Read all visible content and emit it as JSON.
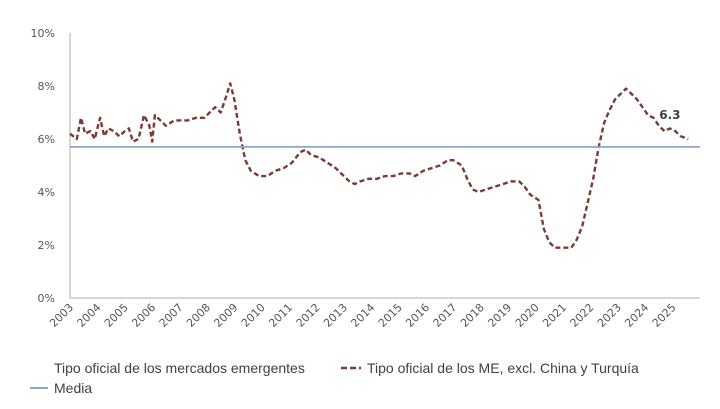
{
  "chart_data": {
    "type": "line",
    "title": "",
    "xlabel": "",
    "ylabel": "",
    "ylim": [
      0,
      10
    ],
    "xlim": [
      2003,
      2026
    ],
    "yticks": [
      "0%",
      "2%",
      "4%",
      "6%",
      "8%",
      "10%"
    ],
    "ytick_values": [
      0,
      2,
      4,
      6,
      8,
      10
    ],
    "xticks": [
      "2003",
      "2004",
      "2005",
      "2006",
      "2007",
      "2008",
      "2009",
      "2010",
      "2011",
      "2012",
      "2013",
      "2014",
      "2015",
      "2016",
      "2017",
      "2018",
      "2019",
      "2020",
      "2021",
      "2022",
      "2023",
      "2024",
      "2025"
    ],
    "grid": false,
    "legend_position": "bottom",
    "colors": {
      "series": "#7b3a33",
      "media": "#8fa7c4",
      "axis": "#c8c8c8"
    },
    "series": [
      {
        "name": "Tipo oficial de los mercados emergentes",
        "style": "none",
        "x": [],
        "values": []
      },
      {
        "name": "Tipo oficial de los ME, excl. China y Turquía",
        "style": "dashed",
        "x": [
          2003.0,
          2003.25,
          2003.4,
          2003.55,
          2003.75,
          2003.9,
          2004.1,
          2004.25,
          2004.4,
          2004.6,
          2004.8,
          2005.0,
          2005.15,
          2005.3,
          2005.5,
          2005.7,
          2005.9,
          2006.0,
          2006.1,
          2006.3,
          2006.5,
          2006.8,
          2007.0,
          2007.3,
          2007.6,
          2007.9,
          2008.1,
          2008.3,
          2008.5,
          2008.7,
          2008.85,
          2009.0,
          2009.2,
          2009.4,
          2009.6,
          2009.9,
          2010.2,
          2010.5,
          2010.8,
          2011.1,
          2011.4,
          2011.6,
          2011.8,
          2012.1,
          2012.4,
          2012.7,
          2013.0,
          2013.2,
          2013.4,
          2013.6,
          2013.9,
          2014.2,
          2014.5,
          2014.8,
          2015.1,
          2015.4,
          2015.6,
          2015.9,
          2016.2,
          2016.5,
          2016.8,
          2017.0,
          2017.3,
          2017.5,
          2017.7,
          2017.9,
          2018.2,
          2018.5,
          2018.8,
          2019.1,
          2019.4,
          2019.6,
          2019.8,
          2020.1,
          2020.3,
          2020.5,
          2020.7,
          2021.0,
          2021.3,
          2021.5,
          2021.7,
          2021.9,
          2022.1,
          2022.3,
          2022.5,
          2022.7,
          2022.9,
          2023.1,
          2023.3,
          2023.5,
          2023.7,
          2023.9,
          2024.1,
          2024.3,
          2024.5,
          2024.7,
          2024.9,
          2025.1,
          2025.3,
          2025.57
        ],
        "values": [
          6.2,
          6.0,
          6.8,
          6.2,
          6.3,
          6.0,
          6.8,
          6.1,
          6.4,
          6.3,
          6.1,
          6.3,
          6.4,
          5.9,
          6.0,
          6.9,
          6.5,
          5.9,
          6.9,
          6.7,
          6.5,
          6.7,
          6.7,
          6.7,
          6.8,
          6.8,
          7.0,
          7.2,
          7.0,
          7.6,
          8.1,
          7.5,
          6.2,
          5.2,
          4.8,
          4.6,
          4.6,
          4.8,
          4.9,
          5.1,
          5.5,
          5.6,
          5.4,
          5.3,
          5.1,
          4.9,
          4.6,
          4.4,
          4.3,
          4.4,
          4.5,
          4.5,
          4.6,
          4.6,
          4.7,
          4.7,
          4.6,
          4.8,
          4.9,
          5.0,
          5.2,
          5.2,
          5.0,
          4.5,
          4.1,
          4.0,
          4.1,
          4.2,
          4.3,
          4.4,
          4.4,
          4.2,
          3.9,
          3.7,
          2.6,
          2.1,
          1.9,
          1.9,
          1.9,
          2.2,
          2.7,
          3.6,
          4.5,
          5.7,
          6.6,
          7.1,
          7.5,
          7.7,
          7.9,
          7.7,
          7.5,
          7.2,
          6.9,
          6.8,
          6.5,
          6.3,
          6.4,
          6.3,
          6.1,
          6.0
        ]
      },
      {
        "name": "Media",
        "style": "solid",
        "x": [
          2003,
          2026
        ],
        "values": [
          5.7,
          5.7
        ]
      }
    ],
    "annotations": [
      {
        "text": "6.3",
        "x": 2024.9,
        "y": 6.9
      }
    ]
  },
  "legend": {
    "item1": "Tipo oficial de los mercados emergentes",
    "item2": "Tipo oficial de los ME, excl. China y Turquía",
    "item3": "Media"
  }
}
